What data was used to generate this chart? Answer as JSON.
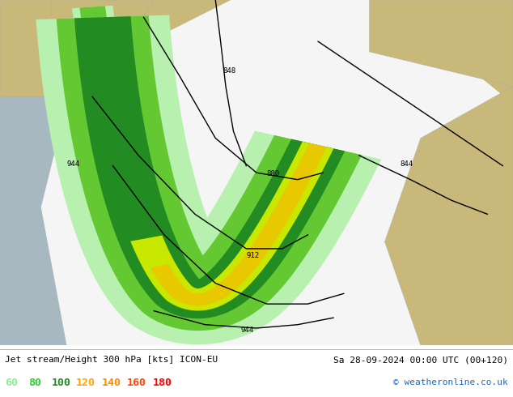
{
  "title_left": "Jet stream/Height 300 hPa [kts] ICON-EU",
  "title_right": "Sa 28-09-2024 00:00 UTC (00+120)",
  "copyright": "© weatheronline.co.uk",
  "legend_values": [
    "60",
    "80",
    "100",
    "120",
    "140",
    "160",
    "180"
  ],
  "legend_colors": [
    "#90ee90",
    "#32cd32",
    "#228b22",
    "#ffa500",
    "#ff8c00",
    "#ff4500",
    "#ff0000"
  ],
  "bg_color": "#ffffff",
  "land_color": "#c8b97a",
  "sea_color": "#a8b8c0",
  "white_area": "#f0f0f0",
  "figsize": [
    6.34,
    4.9
  ],
  "dpi": 100
}
